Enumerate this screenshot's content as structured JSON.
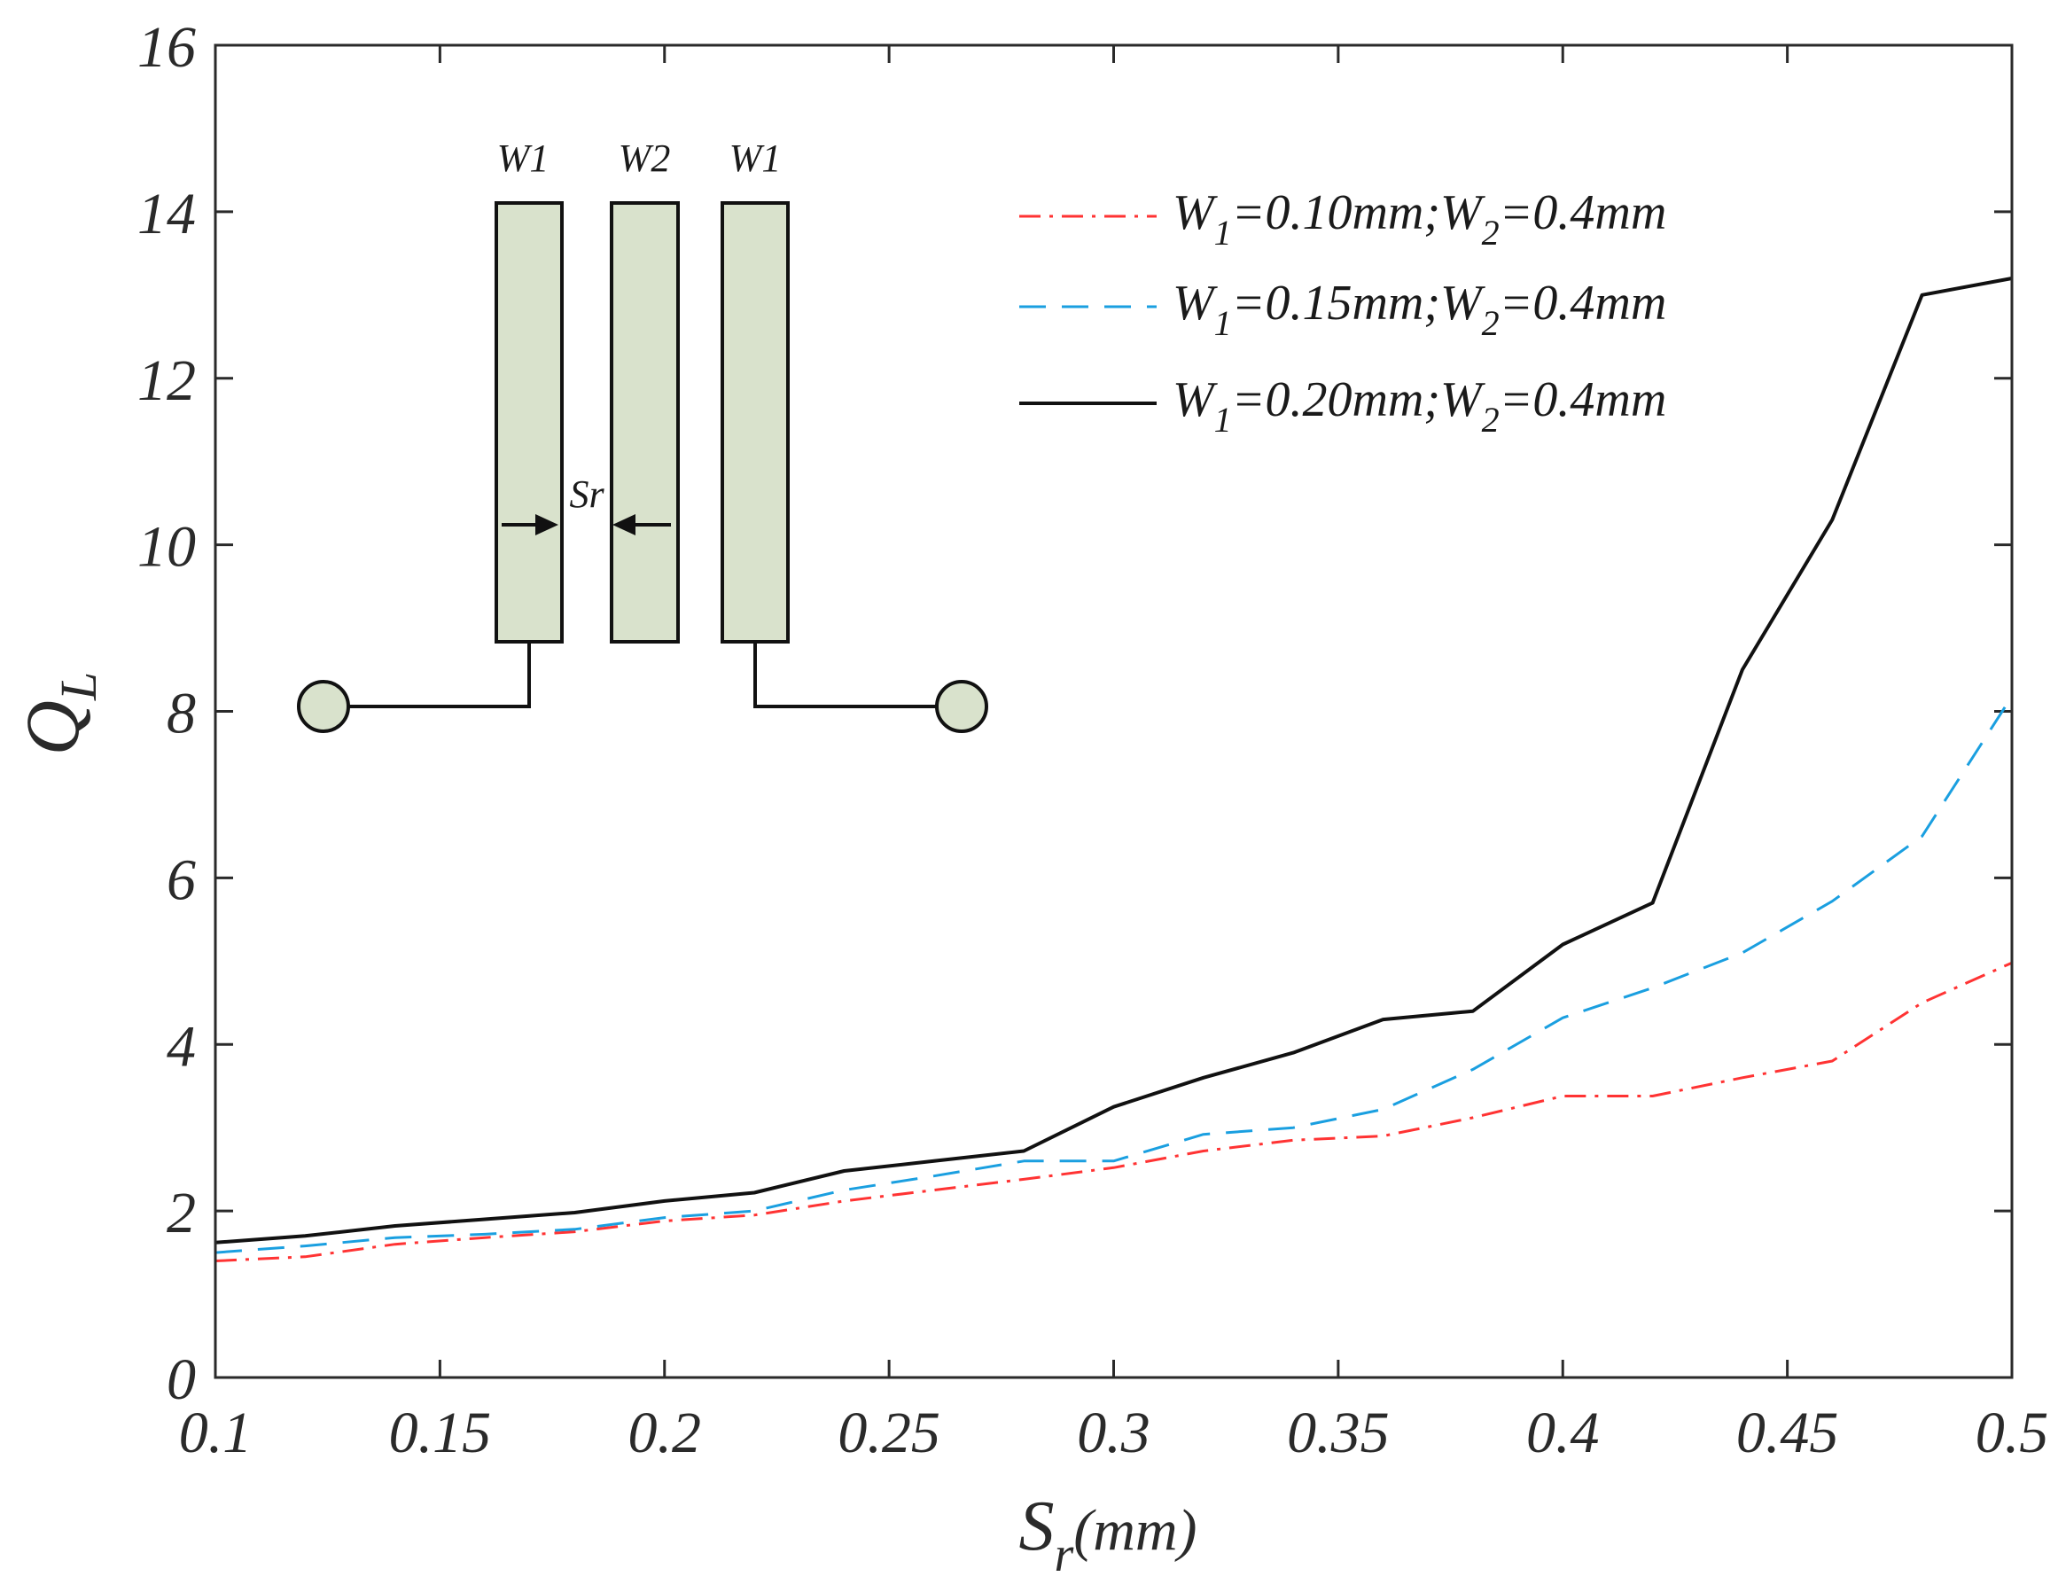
{
  "chart_data": {
    "type": "line",
    "xlabel": {
      "main": "S",
      "sub": "r",
      "suffix": "(mm)"
    },
    "ylabel": {
      "main": "Q",
      "sub": "L"
    },
    "xlim": [
      0.1,
      0.5
    ],
    "ylim": [
      0,
      16
    ],
    "xticks": [
      0.1,
      0.15,
      0.2,
      0.25,
      0.3,
      0.35,
      0.4,
      0.45,
      0.5
    ],
    "xtick_labels": [
      "0.1",
      "0.15",
      "0.2",
      "0.25",
      "0.3",
      "0.35",
      "0.4",
      "0.45",
      "0.5"
    ],
    "yticks": [
      0,
      2,
      4,
      6,
      8,
      10,
      12,
      14,
      16
    ],
    "ytick_labels": [
      "0",
      "2",
      "4",
      "6",
      "8",
      "10",
      "12",
      "14",
      "16"
    ],
    "legend_position": "top-right",
    "series": [
      {
        "name": "W1=0.10mm;W2=0.4mm",
        "legend": {
          "p1": "W",
          "s1": "1",
          "p2": "=0.10mm;W",
          "s2": "2",
          "p3": "=0.4mm"
        },
        "color": "#ff3333",
        "style": "dashdot",
        "x": [
          0.1,
          0.12,
          0.14,
          0.16,
          0.18,
          0.2,
          0.22,
          0.24,
          0.26,
          0.28,
          0.3,
          0.32,
          0.34,
          0.36,
          0.38,
          0.4,
          0.42,
          0.44,
          0.46,
          0.48,
          0.5
        ],
        "y": [
          1.4,
          1.45,
          1.6,
          1.68,
          1.75,
          1.88,
          1.95,
          2.12,
          2.25,
          2.38,
          2.52,
          2.72,
          2.85,
          2.9,
          3.12,
          3.38,
          3.38,
          3.6,
          3.8,
          4.5,
          4.98
        ]
      },
      {
        "name": "W1=0.15mm;W2=0.4mm",
        "legend": {
          "p1": "W",
          "s1": "1",
          "p2": "=0.15mm;W",
          "s2": "2",
          "p3": "=0.4mm"
        },
        "color": "#1a9fe0",
        "style": "dashed",
        "x": [
          0.1,
          0.12,
          0.14,
          0.16,
          0.18,
          0.2,
          0.22,
          0.24,
          0.26,
          0.28,
          0.3,
          0.32,
          0.34,
          0.36,
          0.38,
          0.4,
          0.42,
          0.44,
          0.46,
          0.48,
          0.5
        ],
        "y": [
          1.5,
          1.58,
          1.68,
          1.72,
          1.78,
          1.92,
          2.0,
          2.25,
          2.42,
          2.6,
          2.6,
          2.92,
          3.0,
          3.22,
          3.7,
          4.32,
          4.68,
          5.1,
          5.72,
          6.5,
          8.18
        ]
      },
      {
        "name": "W1=0.20mm;W2=0.4mm",
        "legend": {
          "p1": "W",
          "s1": "1",
          "p2": "=0.20mm;W",
          "s2": "2",
          "p3": "=0.4mm"
        },
        "color": "#111111",
        "style": "solid",
        "x": [
          0.1,
          0.12,
          0.14,
          0.16,
          0.18,
          0.2,
          0.22,
          0.24,
          0.26,
          0.28,
          0.3,
          0.32,
          0.34,
          0.36,
          0.38,
          0.4,
          0.42,
          0.44,
          0.46,
          0.48,
          0.5
        ],
        "y": [
          1.62,
          1.7,
          1.82,
          1.9,
          1.98,
          2.12,
          2.22,
          2.48,
          2.6,
          2.72,
          3.25,
          3.6,
          3.9,
          4.3,
          4.4,
          5.2,
          5.7,
          8.5,
          10.3,
          13.0,
          13.2
        ]
      }
    ],
    "inset": {
      "description": "schematic",
      "labels": [
        "W1",
        "W2",
        "W1"
      ],
      "gap_label": "Sr"
    }
  },
  "colors": {
    "axis": "#2a2a2a",
    "inset_fill": "#d9e2cc",
    "inset_stroke": "#111111"
  }
}
